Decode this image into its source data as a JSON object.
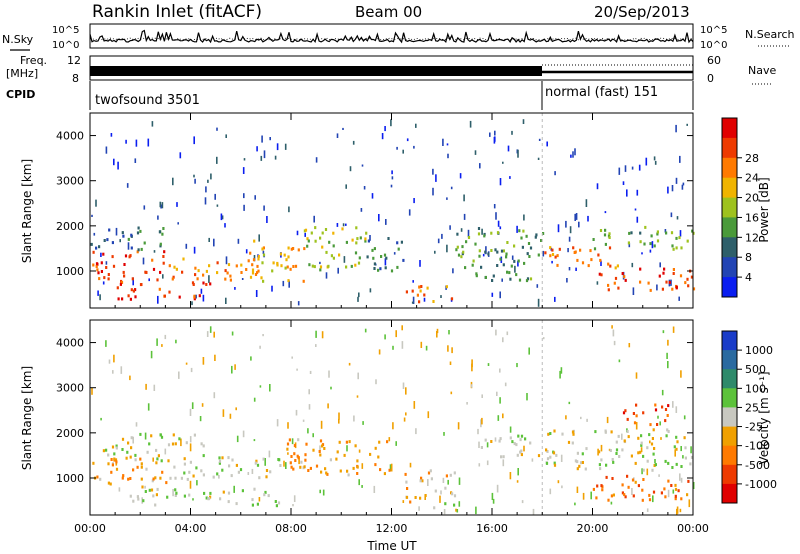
{
  "header": {
    "station": "Rankin Inlet (fitACF)",
    "beam": "Beam 00",
    "date": "20/Sep/2013"
  },
  "aux_panels": {
    "nsky_label": "N.Sky",
    "nsearch_label": "N.Search",
    "noise_ticks": [
      "10^5",
      "10^0"
    ],
    "freq_label_top": "Freq.",
    "freq_label_unit": "[MHz]",
    "freq_ticks": [
      "12",
      "8"
    ],
    "nave_label": "Nave",
    "nave_ticks": [
      "60",
      "0"
    ],
    "cpid_label": "CPID",
    "cpid_segments": [
      {
        "name": "twofsound 3501",
        "start_hour": 0,
        "end_hour": 18.0
      },
      {
        "name": "normal (fast) 151",
        "start_hour": 18.0,
        "end_hour": 24
      }
    ]
  },
  "axes": {
    "x_label": "Time UT",
    "x_ticks": [
      "00:00",
      "04:00",
      "08:00",
      "12:00",
      "16:00",
      "20:00",
      "00:00"
    ],
    "x_range_hours": [
      0,
      24
    ],
    "y_label": "Slant Range [km]",
    "y_ticks": [
      "1000",
      "2000",
      "3000",
      "4000"
    ],
    "y_range_km": [
      180,
      4500
    ]
  },
  "chart_data": [
    {
      "type": "heatmap",
      "name": "power",
      "title": "",
      "colorbar_label": "Power [dB]",
      "colorbar_ticks": [
        "4",
        "8",
        "12",
        "16",
        "20",
        "24",
        "28"
      ],
      "colorbar_colors": [
        "#0a1ef0",
        "#2244b4",
        "#2e5f6a",
        "#4a9a3a",
        "#9ec21e",
        "#f0b400",
        "#ff7a00",
        "#ee3a00",
        "#e00000"
      ],
      "value_range": [
        0,
        32
      ],
      "x_range_hours": [
        0,
        24
      ],
      "y_range_km": [
        180,
        4500
      ],
      "bands": [
        {
          "x": [
            0.0,
            3.0
          ],
          "y": [
            800,
            1500
          ],
          "value": 26
        },
        {
          "x": [
            0.0,
            3.0
          ],
          "y": [
            1500,
            2000
          ],
          "value": 10
        },
        {
          "x": [
            1.0,
            5.0
          ],
          "y": [
            400,
            800
          ],
          "value": 28
        },
        {
          "x": [
            3.0,
            6.5
          ],
          "y": [
            800,
            1300
          ],
          "value": 22
        },
        {
          "x": [
            6.0,
            8.5
          ],
          "y": [
            800,
            1700
          ],
          "value": 20
        },
        {
          "x": [
            8.5,
            11.0
          ],
          "y": [
            1000,
            2000
          ],
          "value": 16
        },
        {
          "x": [
            11.0,
            12.5
          ],
          "y": [
            1000,
            1800
          ],
          "value": 10
        },
        {
          "x": [
            12.5,
            14.5
          ],
          "y": [
            300,
            700
          ],
          "value": 24
        },
        {
          "x": [
            14.5,
            18.0
          ],
          "y": [
            800,
            2000
          ],
          "value": 12
        },
        {
          "x": [
            18.0,
            21.0
          ],
          "y": [
            1100,
            1600
          ],
          "value": 24
        },
        {
          "x": [
            20.0,
            24.0
          ],
          "y": [
            1500,
            2000
          ],
          "value": 14
        },
        {
          "x": [
            20.0,
            24.0
          ],
          "y": [
            600,
            1100
          ],
          "value": 26
        }
      ]
    },
    {
      "type": "heatmap",
      "name": "velocity",
      "title": "",
      "colorbar_label": "Velocity [m s⁻¹]",
      "colorbar_ticks": [
        "1000",
        "500",
        "100",
        "25",
        "-25",
        "-100",
        "-500",
        "-1000"
      ],
      "colorbar_colors": [
        "#1a3cc8",
        "#2a6aa0",
        "#2e8a6a",
        "#5cc23a",
        "#c8c8c0",
        "#f0a000",
        "#ff7a00",
        "#ee3a00",
        "#e00000"
      ],
      "value_range": [
        -1000,
        1000
      ],
      "x_range_hours": [
        0,
        24
      ],
      "y_range_km": [
        180,
        4500
      ],
      "bands": [
        {
          "x": [
            0.0,
            3.0
          ],
          "y": [
            800,
            1500
          ],
          "value": -300
        },
        {
          "x": [
            0.5,
            4.5
          ],
          "y": [
            1500,
            2000
          ],
          "value": 0
        },
        {
          "x": [
            2.5,
            7.5
          ],
          "y": [
            1000,
            1500
          ],
          "value": 0
        },
        {
          "x": [
            1.5,
            7.5
          ],
          "y": [
            400,
            800
          ],
          "value": 80
        },
        {
          "x": [
            7.5,
            12.0
          ],
          "y": [
            1100,
            1900
          ],
          "value": -300
        },
        {
          "x": [
            12.5,
            14.5
          ],
          "y": [
            500,
            1200
          ],
          "value": -200
        },
        {
          "x": [
            13.5,
            14.5
          ],
          "y": [
            300,
            500
          ],
          "value": 80
        },
        {
          "x": [
            15.5,
            18.0
          ],
          "y": [
            1500,
            2000
          ],
          "value": 0
        },
        {
          "x": [
            18.0,
            24.0
          ],
          "y": [
            1200,
            2100
          ],
          "value": 0
        },
        {
          "x": [
            20.0,
            24.0
          ],
          "y": [
            500,
            1100
          ],
          "value": -500
        },
        {
          "x": [
            21.0,
            23.0
          ],
          "y": [
            2200,
            2700
          ],
          "value": -600
        }
      ]
    }
  ]
}
